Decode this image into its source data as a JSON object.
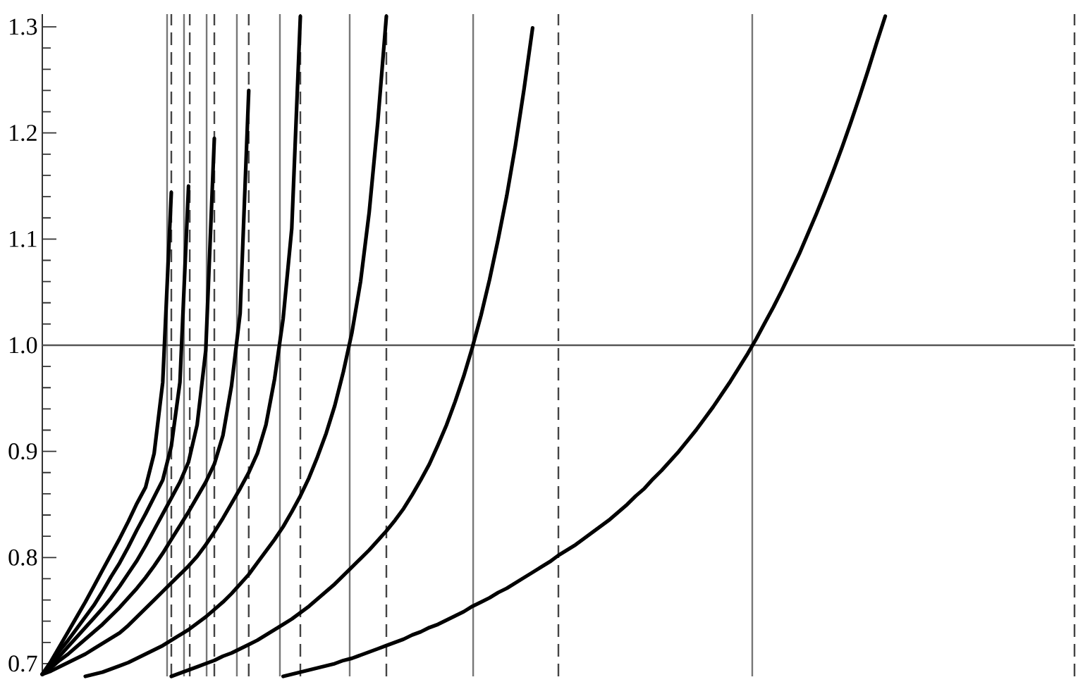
{
  "chart_data": {
    "type": "line",
    "categories": [
      null,
      null,
      null,
      null,
      null,
      null,
      null,
      null,
      null,
      null,
      null,
      null,
      null,
      null,
      null,
      null,
      null,
      null,
      null,
      null,
      null,
      null,
      null,
      null,
      null,
      null,
      null,
      null,
      null,
      null,
      null,
      null,
      null,
      null,
      null,
      null,
      null,
      null,
      null,
      null,
      null,
      null,
      null,
      null,
      null,
      null,
      null,
      null,
      null,
      null,
      null,
      null,
      null,
      null,
      null,
      null,
      null,
      null,
      null,
      null,
      null,
      null,
      null,
      null,
      null,
      null,
      null,
      null,
      null,
      null,
      null,
      null,
      null,
      null,
      null,
      null,
      null,
      null,
      null,
      null,
      null,
      null,
      null,
      null,
      null,
      null,
      null,
      null,
      null,
      null,
      null,
      null,
      null,
      null,
      null,
      null,
      null,
      null,
      null,
      null,
      null,
      null,
      null,
      null,
      null,
      null,
      null,
      null,
      null,
      null,
      null,
      null,
      null,
      null,
      null,
      null,
      null,
      null,
      null,
      null,
      null
    ],
    "series": [
      {
        "color": "#000000",
        "values": [
          0.69,
          0.702,
          0.716,
          0.73,
          0.744,
          0.758,
          0.773,
          0.788,
          0.803,
          0.818,
          0.834,
          0.851,
          0.866,
          0.898,
          0.965,
          1.144,
          null,
          null,
          null,
          null,
          null,
          null,
          null,
          null,
          null,
          null,
          null,
          null,
          null,
          null,
          null,
          null,
          null,
          null,
          null,
          null,
          null,
          null,
          null,
          null,
          null,
          null,
          null,
          null,
          null,
          null,
          null,
          null,
          null,
          null,
          null,
          null,
          null,
          null,
          null,
          null,
          null,
          null,
          null,
          null,
          null,
          null,
          null,
          null,
          null,
          null,
          null,
          null,
          null,
          null,
          null,
          null,
          null,
          null,
          null,
          null,
          null,
          null,
          null,
          null,
          null,
          null,
          null,
          null,
          null,
          null,
          null,
          null,
          null,
          null,
          null,
          null,
          null,
          null,
          null,
          null,
          null,
          null,
          null,
          null,
          null,
          null,
          null,
          null,
          null,
          null,
          null,
          null,
          null,
          null,
          null,
          null,
          null,
          null,
          null,
          null,
          null,
          null,
          null,
          null,
          null
        ]
      },
      {
        "color": "#000000",
        "values": [
          0.69,
          0.701,
          0.712,
          0.722,
          0.733,
          0.744,
          0.755,
          0.768,
          0.782,
          0.795,
          0.81,
          0.826,
          0.841,
          0.857,
          0.873,
          0.905,
          0.965,
          1.15,
          null,
          null,
          null,
          null,
          null,
          null,
          null,
          null,
          null,
          null,
          null,
          null,
          null,
          null,
          null,
          null,
          null,
          null,
          null,
          null,
          null,
          null,
          null,
          null,
          null,
          null,
          null,
          null,
          null,
          null,
          null,
          null,
          null,
          null,
          null,
          null,
          null,
          null,
          null,
          null,
          null,
          null,
          null,
          null,
          null,
          null,
          null,
          null,
          null,
          null,
          null,
          null,
          null,
          null,
          null,
          null,
          null,
          null,
          null,
          null,
          null,
          null,
          null,
          null,
          null,
          null,
          null,
          null,
          null,
          null,
          null,
          null,
          null,
          null,
          null,
          null,
          null,
          null,
          null,
          null,
          null,
          null,
          null,
          null,
          null,
          null,
          null,
          null,
          null,
          null,
          null,
          null,
          null,
          null,
          null,
          null,
          null,
          null,
          null,
          null,
          null,
          null,
          null
        ]
      },
      {
        "color": "#000000",
        "values": [
          0.69,
          0.698,
          0.707,
          0.716,
          0.725,
          0.734,
          0.743,
          0.752,
          0.762,
          0.773,
          0.785,
          0.797,
          0.811,
          0.826,
          0.841,
          0.856,
          0.871,
          0.89,
          0.925,
          0.995,
          1.195,
          null,
          null,
          null,
          null,
          null,
          null,
          null,
          null,
          null,
          null,
          null,
          null,
          null,
          null,
          null,
          null,
          null,
          null,
          null,
          null,
          null,
          null,
          null,
          null,
          null,
          null,
          null,
          null,
          null,
          null,
          null,
          null,
          null,
          null,
          null,
          null,
          null,
          null,
          null,
          null,
          null,
          null,
          null,
          null,
          null,
          null,
          null,
          null,
          null,
          null,
          null,
          null,
          null,
          null,
          null,
          null,
          null,
          null,
          null,
          null,
          null,
          null,
          null,
          null,
          null,
          null,
          null,
          null,
          null,
          null,
          null,
          null,
          null,
          null,
          null,
          null,
          null,
          null,
          null,
          null,
          null,
          null,
          null,
          null,
          null,
          null,
          null,
          null,
          null,
          null,
          null,
          null,
          null,
          null,
          null,
          null,
          null,
          null,
          null,
          null
        ]
      },
      {
        "color": "#000000",
        "values": [
          0.69,
          0.696,
          0.703,
          0.709,
          0.716,
          0.723,
          0.73,
          0.737,
          0.745,
          0.753,
          0.762,
          0.771,
          0.781,
          0.792,
          0.804,
          0.817,
          0.83,
          0.843,
          0.857,
          0.871,
          0.888,
          0.915,
          0.962,
          1.03,
          1.24,
          null,
          null,
          null,
          null,
          null,
          null,
          null,
          null,
          null,
          null,
          null,
          null,
          null,
          null,
          null,
          null,
          null,
          null,
          null,
          null,
          null,
          null,
          null,
          null,
          null,
          null,
          null,
          null,
          null,
          null,
          null,
          null,
          null,
          null,
          null,
          null,
          null,
          null,
          null,
          null,
          null,
          null,
          null,
          null,
          null,
          null,
          null,
          null,
          null,
          null,
          null,
          null,
          null,
          null,
          null,
          null,
          null,
          null,
          null,
          null,
          null,
          null,
          null,
          null,
          null,
          null,
          null,
          null,
          null,
          null,
          null,
          null,
          null,
          null,
          null,
          null,
          null,
          null,
          null,
          null,
          null,
          null,
          null,
          null,
          null,
          null,
          null,
          null,
          null,
          null,
          null,
          null,
          null,
          null,
          null,
          null
        ]
      },
      {
        "color": "#000000",
        "values": [
          0.69,
          0.693,
          0.697,
          0.701,
          0.705,
          0.709,
          0.714,
          0.719,
          0.724,
          0.729,
          0.736,
          0.744,
          0.752,
          0.76,
          0.768,
          0.776,
          0.784,
          0.792,
          0.801,
          0.812,
          0.824,
          0.837,
          0.851,
          0.865,
          0.88,
          0.898,
          0.925,
          0.968,
          1.025,
          1.11,
          1.31,
          null,
          null,
          null,
          null,
          null,
          null,
          null,
          null,
          null,
          null,
          null,
          null,
          null,
          null,
          null,
          null,
          null,
          null,
          null,
          null,
          null,
          null,
          null,
          null,
          null,
          null,
          null,
          null,
          null,
          null,
          null,
          null,
          null,
          null,
          null,
          null,
          null,
          null,
          null,
          null,
          null,
          null,
          null,
          null,
          null,
          null,
          null,
          null,
          null,
          null,
          null,
          null,
          null,
          null,
          null,
          null,
          null,
          null,
          null,
          null,
          null,
          null,
          null,
          null,
          null,
          null,
          null,
          null,
          null,
          null,
          null,
          null,
          null,
          null,
          null,
          null,
          null,
          null,
          null,
          null,
          null,
          null,
          null,
          null,
          null,
          null,
          null,
          null,
          null,
          null
        ]
      },
      {
        "color": "#000000",
        "values": [
          null,
          null,
          null,
          null,
          null,
          0.688,
          0.69,
          0.692,
          0.695,
          0.698,
          0.701,
          0.705,
          0.709,
          0.713,
          0.717,
          0.722,
          0.727,
          0.732,
          0.738,
          0.744,
          0.751,
          0.758,
          0.766,
          0.775,
          0.784,
          0.795,
          0.806,
          0.817,
          0.829,
          0.843,
          0.858,
          0.875,
          0.895,
          0.917,
          0.943,
          0.975,
          1.012,
          1.06,
          1.125,
          1.21,
          1.31,
          null,
          null,
          null,
          null,
          null,
          null,
          null,
          null,
          null,
          null,
          null,
          null,
          null,
          null,
          null,
          null,
          null,
          null,
          null,
          null,
          null,
          null,
          null,
          null,
          null,
          null,
          null,
          null,
          null,
          null,
          null,
          null,
          null,
          null,
          null,
          null,
          null,
          null,
          null,
          null,
          null,
          null,
          null,
          null,
          null,
          null,
          null,
          null,
          null,
          null,
          null,
          null,
          null,
          null,
          null,
          null,
          null,
          null,
          null,
          null,
          null,
          null,
          null,
          null,
          null,
          null,
          null,
          null,
          null,
          null,
          null,
          null,
          null,
          null,
          null,
          null,
          null,
          null,
          null,
          null
        ]
      },
      {
        "color": "#000000",
        "values": [
          null,
          null,
          null,
          null,
          null,
          null,
          null,
          null,
          null,
          null,
          null,
          null,
          null,
          null,
          null,
          0.688,
          0.691,
          0.694,
          0.697,
          0.7,
          0.703,
          0.707,
          0.71,
          0.714,
          0.718,
          0.722,
          0.727,
          0.732,
          0.737,
          0.742,
          0.748,
          0.754,
          0.761,
          0.768,
          0.775,
          0.783,
          0.791,
          0.799,
          0.807,
          0.816,
          0.825,
          0.835,
          0.846,
          0.859,
          0.873,
          0.888,
          0.906,
          0.925,
          0.947,
          0.971,
          0.998,
          1.028,
          1.062,
          1.1,
          1.141,
          1.188,
          1.241,
          1.299,
          null,
          null,
          null,
          null,
          null,
          null,
          null,
          null,
          null,
          null,
          null,
          null,
          null,
          null,
          null,
          null,
          null,
          null,
          null,
          null,
          null,
          null,
          null,
          null,
          null,
          null,
          null,
          null,
          null,
          null,
          null,
          null,
          null,
          null,
          null,
          null,
          null,
          null,
          null,
          null,
          null,
          null,
          null,
          null,
          null,
          null,
          null,
          null,
          null,
          null,
          null,
          null,
          null,
          null,
          null,
          null,
          null,
          null,
          null,
          null,
          null,
          null,
          null
        ]
      },
      {
        "color": "#000000",
        "values": [
          null,
          null,
          null,
          null,
          null,
          null,
          null,
          null,
          null,
          null,
          null,
          null,
          null,
          null,
          null,
          null,
          null,
          null,
          null,
          null,
          null,
          null,
          null,
          null,
          null,
          null,
          null,
          null,
          0.688,
          0.69,
          0.692,
          0.694,
          0.696,
          0.698,
          0.7,
          0.703,
          0.705,
          0.708,
          0.711,
          0.714,
          0.717,
          0.72,
          0.723,
          0.727,
          0.73,
          0.734,
          0.737,
          0.741,
          0.745,
          0.749,
          0.754,
          0.758,
          0.762,
          0.767,
          0.771,
          0.776,
          0.781,
          0.786,
          0.791,
          0.796,
          0.802,
          0.807,
          0.812,
          0.818,
          0.824,
          0.83,
          0.836,
          0.843,
          0.85,
          0.858,
          0.865,
          0.874,
          0.882,
          0.891,
          0.9,
          0.91,
          0.92,
          0.931,
          0.942,
          0.954,
          0.966,
          0.979,
          0.992,
          1.006,
          1.021,
          1.036,
          1.052,
          1.069,
          1.086,
          1.105,
          1.124,
          1.144,
          1.165,
          1.187,
          1.21,
          1.234,
          1.259,
          1.285,
          1.31,
          null,
          null,
          null,
          null,
          null,
          null,
          null,
          null,
          null,
          null,
          null,
          null,
          null,
          null,
          null,
          null,
          null,
          null,
          null,
          null,
          null,
          null
        ]
      }
    ],
    "ylim": [
      0.688,
      1.312
    ],
    "yticks": [
      0.7,
      {
        "value": 0.72,
        "label": null
      },
      {
        "value": 0.74,
        "label": null
      },
      {
        "value": 0.76,
        "label": null
      },
      {
        "value": 0.78,
        "label": null
      },
      0.8,
      {
        "value": 0.82,
        "label": null
      },
      {
        "value": 0.84,
        "label": null
      },
      {
        "value": 0.86,
        "label": null
      },
      {
        "value": 0.88,
        "label": null
      },
      0.9,
      {
        "value": 0.92,
        "label": null
      },
      {
        "value": 0.94,
        "label": null
      },
      {
        "value": 0.96,
        "label": null
      },
      {
        "value": 0.98,
        "label": null
      },
      {
        "value": 1,
        "label": "1.0"
      },
      {
        "value": 1.02,
        "label": null
      },
      {
        "value": 1.04,
        "label": null
      },
      {
        "value": 1.06,
        "label": null
      },
      {
        "value": 1.08,
        "label": null
      },
      1.1,
      {
        "value": 1.12,
        "label": null
      },
      {
        "value": 1.14,
        "label": null
      },
      {
        "value": 1.16,
        "label": null
      },
      {
        "value": 1.18,
        "label": null
      },
      1.2,
      {
        "value": 1.22,
        "label": null
      },
      {
        "value": 1.24,
        "label": null
      },
      {
        "value": 1.26,
        "label": null
      },
      {
        "value": 1.28,
        "label": null
      },
      1.3
    ],
    "tick_labels": "y",
    "grid": "x",
    "ref_lines": [
      {
        "axis": "y",
        "value": 1,
        "color": "#555555"
      }
    ]
  }
}
